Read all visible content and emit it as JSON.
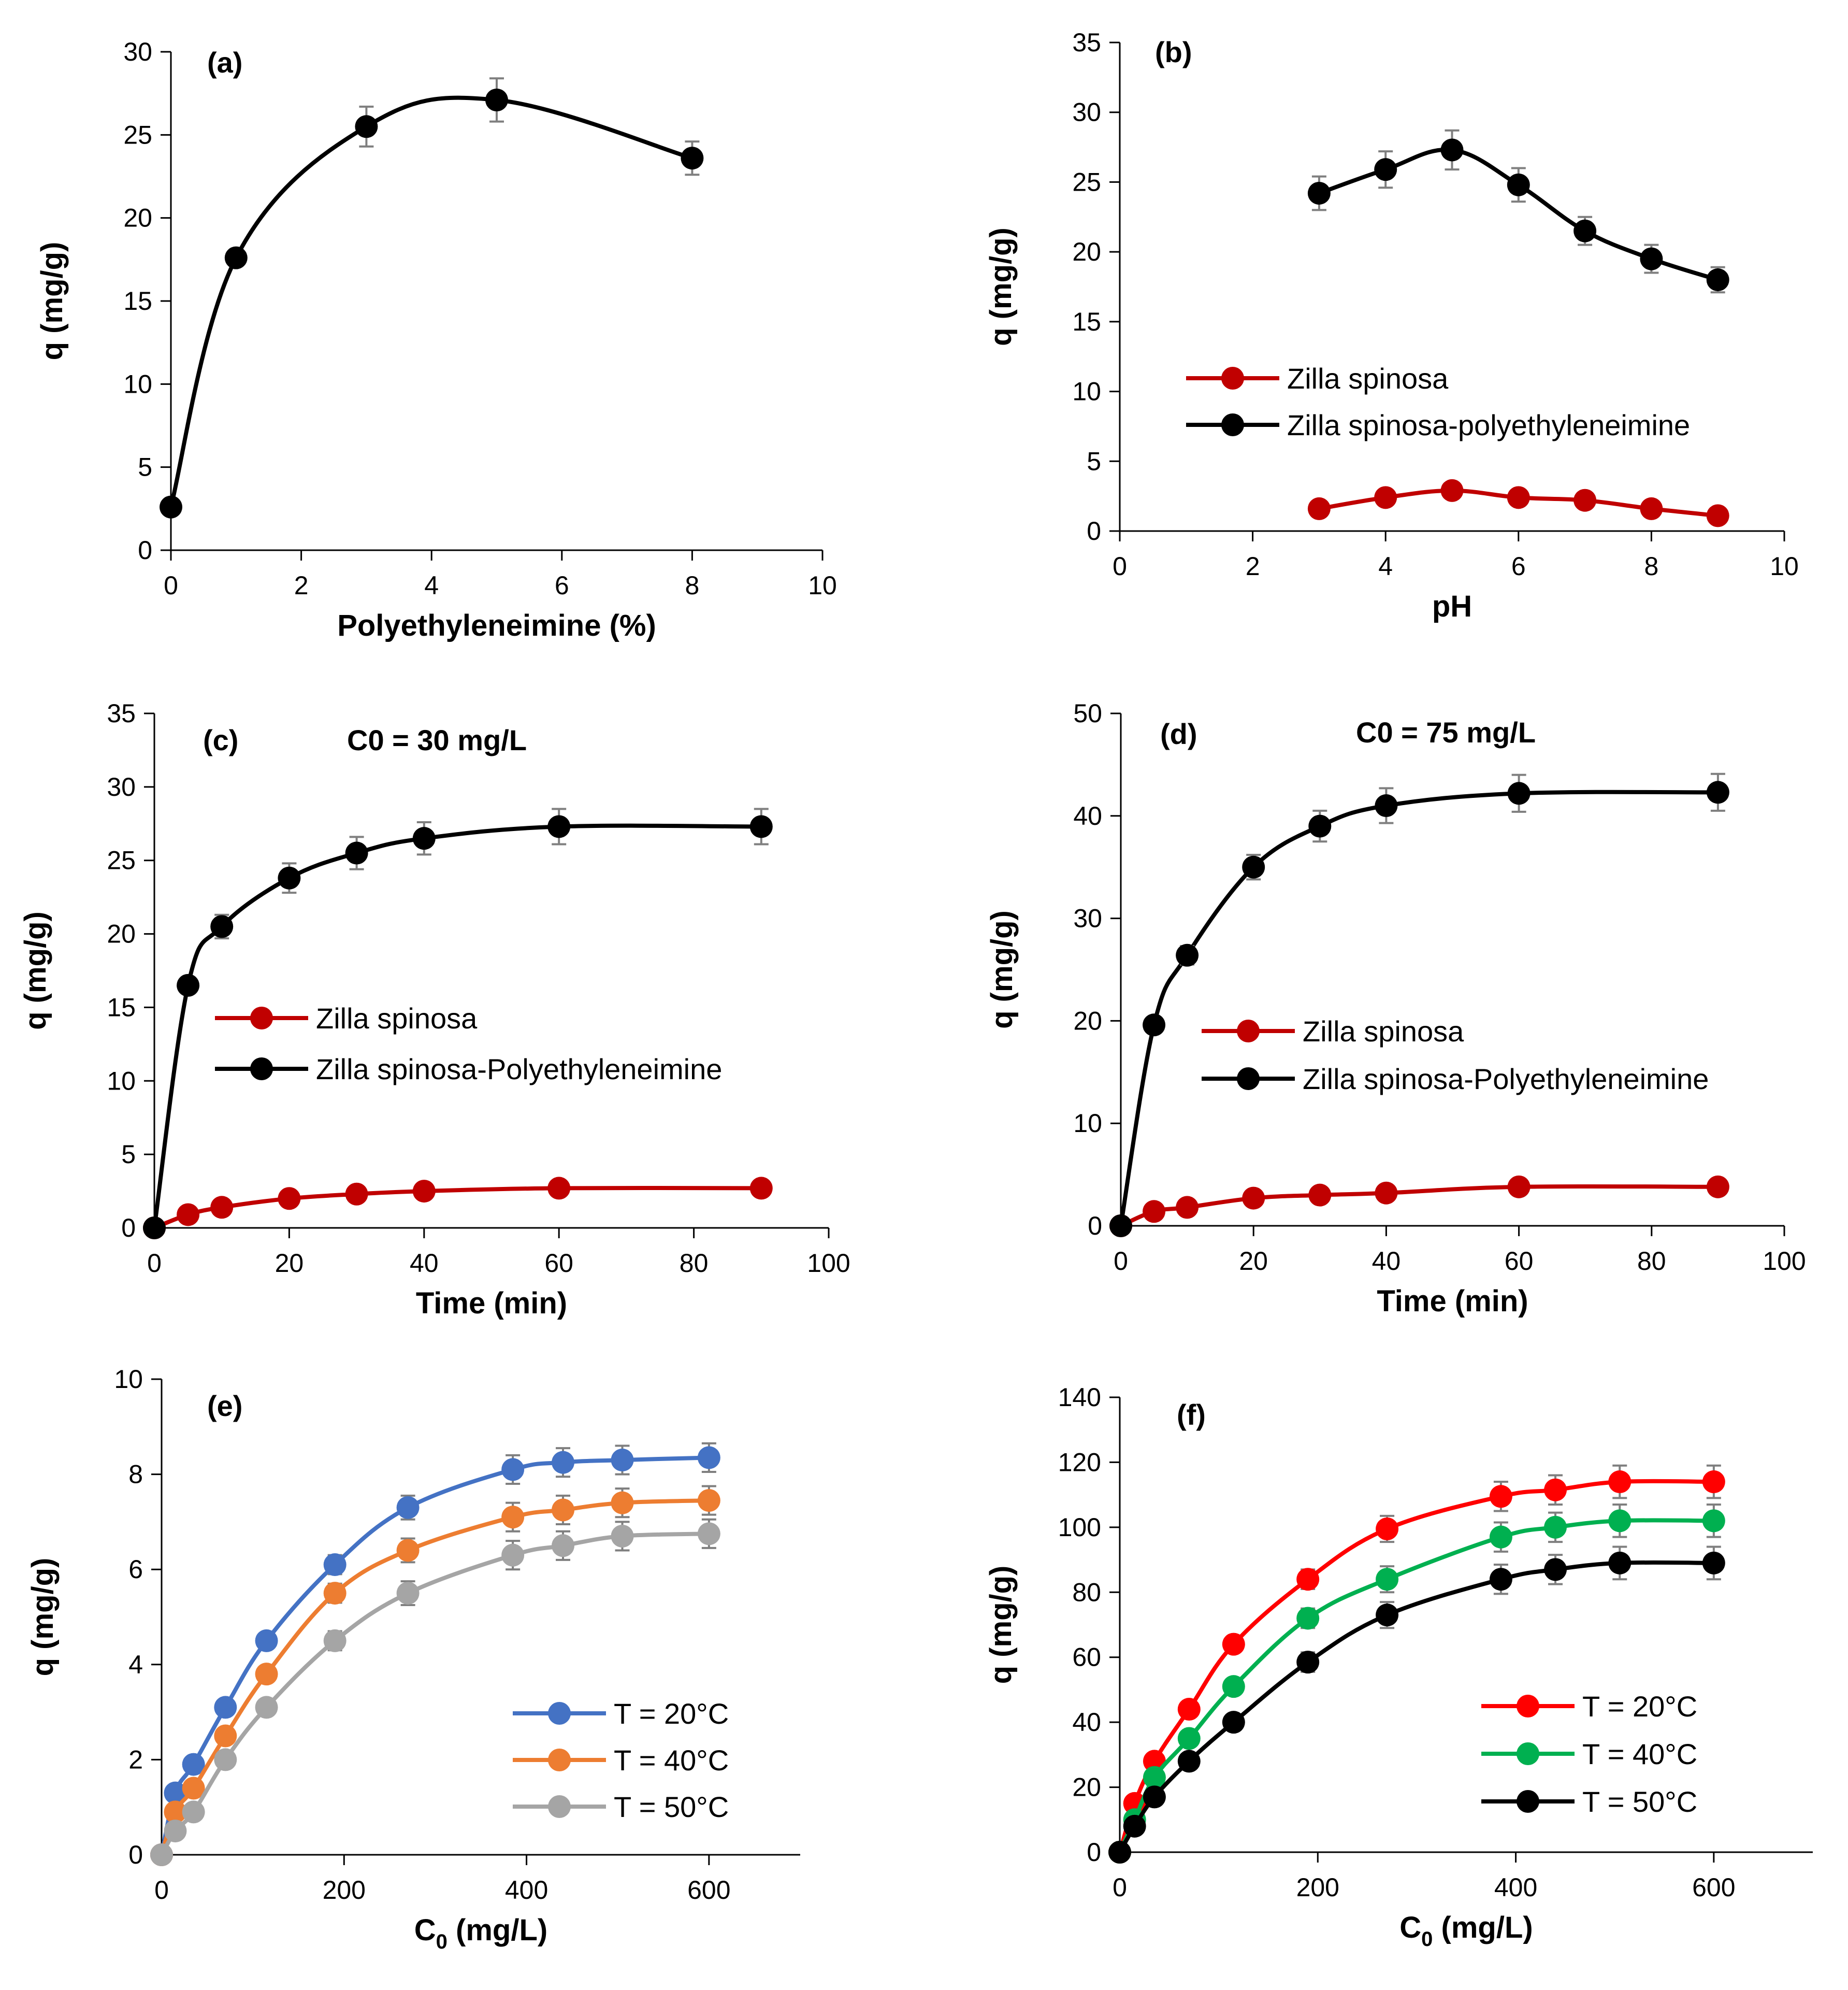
{
  "chart_data": [
    {
      "id": "a",
      "type": "line",
      "panel_label": "(a)",
      "annotation": "",
      "xlabel": "Polyethyleneimine (%)",
      "ylabel": "q (mg/g)",
      "xlim": [
        0,
        10
      ],
      "ylim": [
        0,
        30
      ],
      "xticks": [
        0,
        2,
        4,
        6,
        8,
        10
      ],
      "yticks": [
        0,
        5,
        10,
        15,
        20,
        25,
        30
      ],
      "legend": null,
      "series": [
        {
          "name": "q",
          "color": "#000000",
          "x": [
            0,
            1,
            3,
            5,
            8
          ],
          "y": [
            2.6,
            17.6,
            25.5,
            27.1,
            23.6
          ],
          "err": [
            0,
            0,
            1.2,
            1.3,
            1.0
          ]
        }
      ]
    },
    {
      "id": "b",
      "type": "line",
      "panel_label": "(b)",
      "annotation": "",
      "xlabel": "pH",
      "ylabel": "q (mg/g)",
      "xlim": [
        0,
        10
      ],
      "ylim": [
        0,
        35
      ],
      "xticks": [
        0,
        2,
        4,
        6,
        8,
        10
      ],
      "yticks": [
        0,
        5,
        10,
        15,
        20,
        25,
        30,
        35
      ],
      "legend": "center-left",
      "series": [
        {
          "name": "Zilla spinosa",
          "color": "#C00000",
          "x": [
            3,
            4,
            5,
            6,
            7,
            8,
            9
          ],
          "y": [
            1.6,
            2.4,
            2.9,
            2.4,
            2.2,
            1.6,
            1.1
          ],
          "err": [
            0,
            0,
            0,
            0,
            0,
            0,
            0
          ]
        },
        {
          "name": "Zilla spinosa-polyethyleneimine",
          "color": "#000000",
          "x": [
            3,
            4,
            5,
            6,
            7,
            8,
            9
          ],
          "y": [
            24.2,
            25.9,
            27.3,
            24.8,
            21.5,
            19.5,
            18.0
          ],
          "err": [
            1.2,
            1.3,
            1.4,
            1.2,
            1.0,
            1.0,
            0.9
          ]
        }
      ]
    },
    {
      "id": "c",
      "type": "line",
      "panel_label": "(c)",
      "annotation": "C0 = 30 mg/L",
      "xlabel": "Time (min)",
      "ylabel": "q (mg/g)",
      "xlim": [
        0,
        100
      ],
      "ylim": [
        0,
        35
      ],
      "xticks": [
        0,
        20,
        40,
        60,
        80,
        100
      ],
      "yticks": [
        0,
        5,
        10,
        15,
        20,
        25,
        30,
        35
      ],
      "legend": "center-left",
      "series": [
        {
          "name": "Zilla spinosa",
          "color": "#C00000",
          "x": [
            0,
            5,
            10,
            20,
            30,
            40,
            60,
            90
          ],
          "y": [
            0,
            0.9,
            1.4,
            2.0,
            2.3,
            2.5,
            2.7,
            2.7
          ],
          "err": [
            0,
            0,
            0,
            0,
            0,
            0,
            0,
            0
          ]
        },
        {
          "name": "Zilla spinosa-Polyethyleneimine",
          "color": "#000000",
          "x": [
            0,
            5,
            10,
            20,
            30,
            40,
            60,
            90
          ],
          "y": [
            0,
            16.5,
            20.5,
            23.8,
            25.5,
            26.5,
            27.3,
            27.3
          ],
          "err": [
            0,
            0.5,
            0.8,
            1.0,
            1.1,
            1.1,
            1.2,
            1.2
          ]
        }
      ]
    },
    {
      "id": "d",
      "type": "line",
      "panel_label": "(d)",
      "annotation": "C0 = 75 mg/L",
      "xlabel": "Time (min)",
      "ylabel": "q (mg/g)",
      "xlim": [
        0,
        100
      ],
      "ylim": [
        0,
        50
      ],
      "xticks": [
        0,
        20,
        40,
        60,
        80,
        100
      ],
      "yticks": [
        0,
        10,
        20,
        30,
        40,
        50
      ],
      "legend": "center-left",
      "series": [
        {
          "name": "Zilla spinosa",
          "color": "#C00000",
          "x": [
            0,
            5,
            10,
            20,
            30,
            40,
            60,
            90
          ],
          "y": [
            0,
            1.4,
            1.8,
            2.7,
            3.0,
            3.2,
            3.8,
            3.8
          ],
          "err": [
            0,
            0,
            0,
            0,
            0,
            0,
            0,
            0
          ]
        },
        {
          "name": "Zilla spinosa-Polyethyleneimine",
          "color": "#000000",
          "x": [
            0,
            5,
            10,
            20,
            30,
            40,
            60,
            90
          ],
          "y": [
            0,
            19.6,
            26.4,
            35.0,
            39.0,
            41.0,
            42.2,
            42.3
          ],
          "err": [
            0,
            0.6,
            0.9,
            1.2,
            1.5,
            1.7,
            1.8,
            1.8
          ]
        }
      ]
    },
    {
      "id": "e",
      "type": "line",
      "panel_label": "(e)",
      "annotation": "",
      "xlabel_main": "C",
      "xlabel_sub": "0",
      "xlabel_rest": " (mg/L)",
      "ylabel": "q (mg/g)",
      "xlim": [
        0,
        700
      ],
      "ylim": [
        0,
        10
      ],
      "xticks": [
        0,
        200,
        400,
        600
      ],
      "yticks": [
        0,
        2,
        4,
        6,
        8,
        10
      ],
      "legend": "center-right",
      "series": [
        {
          "name": "T = 20°C",
          "color": "#4472C4",
          "x": [
            0,
            15,
            35,
            70,
            115,
            190,
            270,
            385,
            440,
            505,
            600
          ],
          "y": [
            0,
            1.3,
            1.9,
            3.1,
            4.5,
            6.1,
            7.3,
            8.1,
            8.25,
            8.3,
            8.35
          ],
          "err": [
            0,
            0,
            0,
            0,
            0,
            0.2,
            0.25,
            0.3,
            0.3,
            0.3,
            0.3
          ]
        },
        {
          "name": "T = 40°C",
          "color": "#ED7D31",
          "x": [
            0,
            15,
            35,
            70,
            115,
            190,
            270,
            385,
            440,
            505,
            600
          ],
          "y": [
            0,
            0.9,
            1.4,
            2.5,
            3.8,
            5.5,
            6.4,
            7.1,
            7.25,
            7.4,
            7.45
          ],
          "err": [
            0,
            0,
            0,
            0,
            0,
            0.2,
            0.25,
            0.3,
            0.3,
            0.3,
            0.3
          ]
        },
        {
          "name": "T = 50°C",
          "color": "#A5A5A5",
          "x": [
            0,
            15,
            35,
            70,
            115,
            190,
            270,
            385,
            440,
            505,
            600
          ],
          "y": [
            0,
            0.5,
            0.9,
            2.0,
            3.1,
            4.5,
            5.5,
            6.3,
            6.5,
            6.7,
            6.75
          ],
          "err": [
            0,
            0,
            0,
            0,
            0,
            0.2,
            0.25,
            0.3,
            0.3,
            0.3,
            0.3
          ]
        }
      ]
    },
    {
      "id": "f",
      "type": "line",
      "panel_label": "(f)",
      "annotation": "",
      "xlabel_main": "C",
      "xlabel_sub": "0",
      "xlabel_rest": " (mg/L)",
      "ylabel": "q (mg/g)",
      "xlim": [
        0,
        700
      ],
      "ylim": [
        0,
        140
      ],
      "xticks": [
        0,
        200,
        400,
        600
      ],
      "yticks": [
        0,
        20,
        40,
        60,
        80,
        100,
        120,
        140
      ],
      "legend": "center-right",
      "series": [
        {
          "name": "T = 20°C",
          "color": "#FF0000",
          "x": [
            0,
            15,
            35,
            70,
            115,
            190,
            270,
            385,
            440,
            505,
            600
          ],
          "y": [
            0,
            15,
            28,
            44,
            64,
            84,
            99.5,
            109.5,
            111.5,
            114,
            114
          ],
          "err": [
            0,
            0,
            0,
            0,
            0,
            3,
            4,
            4.5,
            4.5,
            5,
            5
          ]
        },
        {
          "name": "T = 40°C",
          "color": "#00B050",
          "x": [
            0,
            15,
            35,
            70,
            115,
            190,
            270,
            385,
            440,
            505,
            600
          ],
          "y": [
            0,
            10,
            23,
            35,
            51,
            72,
            84,
            97,
            100,
            102,
            102
          ],
          "err": [
            0,
            0,
            0,
            0,
            0,
            3,
            4,
            4.5,
            4.5,
            5,
            5
          ]
        },
        {
          "name": "T = 50°C",
          "color": "#000000",
          "x": [
            0,
            15,
            35,
            70,
            115,
            190,
            270,
            385,
            440,
            505,
            600
          ],
          "y": [
            0,
            8,
            17,
            28,
            40,
            58.5,
            73,
            84,
            87,
            89,
            89
          ],
          "err": [
            0,
            0,
            0,
            0,
            0,
            3,
            4,
            4.5,
            4.5,
            5,
            5
          ]
        }
      ]
    }
  ]
}
